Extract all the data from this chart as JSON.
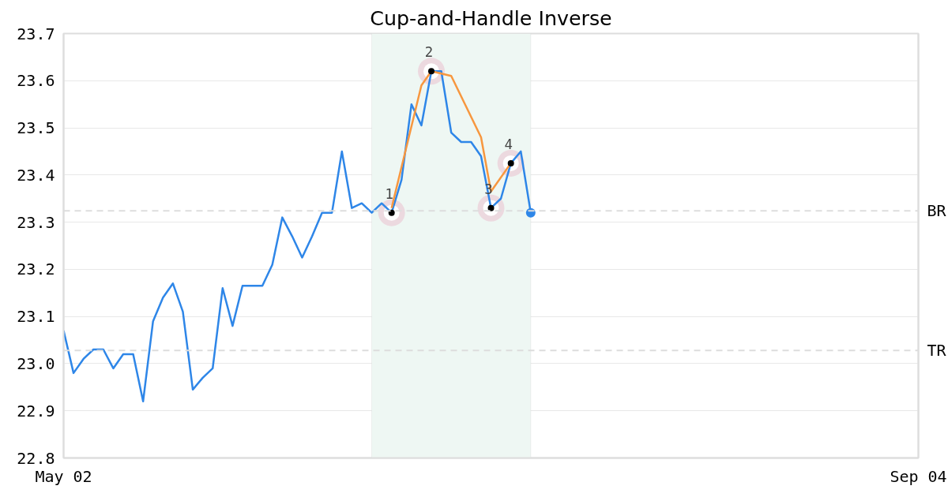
{
  "chart_data": {
    "type": "line",
    "title": "Cup-and-Handle Inverse",
    "categories": [
      "May 02",
      null,
      null,
      null,
      null,
      null,
      null,
      null,
      null,
      null,
      null,
      null,
      null,
      null,
      null,
      null,
      null,
      null,
      null,
      null,
      null,
      null,
      null,
      null,
      null,
      null,
      null,
      null,
      null,
      null,
      null,
      null,
      null,
      null,
      null,
      null,
      null,
      null,
      null,
      null,
      null,
      null,
      null,
      null,
      null,
      null,
      null,
      null,
      null,
      null,
      null,
      null,
      null,
      null,
      null,
      null,
      null,
      null,
      null,
      null,
      null,
      null,
      null,
      null,
      null,
      null,
      null,
      null,
      null,
      null,
      null,
      null,
      null,
      null,
      null,
      null,
      null,
      null,
      null,
      null,
      null,
      null,
      null,
      null,
      null,
      null,
      "Sep 04"
    ],
    "series": [
      {
        "color": "#2e86e8",
        "values": [
          23.07,
          22.98,
          23.01,
          23.03,
          23.03,
          22.99,
          23.02,
          23.02,
          22.92,
          23.09,
          23.14,
          23.17,
          23.11,
          22.945,
          22.97,
          22.99,
          23.16,
          23.08,
          23.165,
          23.165,
          23.165,
          23.21,
          23.31,
          23.27,
          23.225,
          23.27,
          23.32,
          23.32,
          23.45,
          23.33,
          23.34,
          23.32,
          23.34,
          23.32,
          23.39,
          23.55,
          23.505,
          23.62,
          23.62,
          23.49,
          23.47,
          23.47,
          23.44,
          23.33,
          23.35,
          23.425,
          23.45,
          23.32,
          null,
          null,
          null,
          null,
          null,
          null,
          null,
          null,
          null,
          null,
          null,
          null,
          null,
          null,
          null,
          null,
          null,
          null,
          null,
          null,
          null,
          null,
          null,
          null,
          null,
          null,
          null,
          null,
          null,
          null,
          null,
          null,
          null,
          null,
          null,
          null,
          null,
          null,
          null
        ]
      },
      {
        "color": "#f7973f",
        "values": [
          null,
          null,
          null,
          null,
          null,
          null,
          null,
          null,
          null,
          null,
          null,
          null,
          null,
          null,
          null,
          null,
          null,
          null,
          null,
          null,
          null,
          null,
          null,
          null,
          null,
          null,
          null,
          null,
          null,
          null,
          null,
          null,
          null,
          23.33,
          null,
          null,
          23.59,
          23.62,
          null,
          23.61,
          null,
          null,
          23.48,
          23.365,
          null,
          23.425,
          null,
          null,
          null,
          null,
          null,
          null,
          null,
          null,
          null,
          null,
          null,
          null,
          null,
          null,
          null,
          null,
          null,
          null,
          null,
          null,
          null,
          null,
          null,
          null,
          null,
          null,
          null,
          null,
          null,
          null,
          null,
          null,
          null,
          null,
          null,
          null,
          null,
          null,
          null,
          null,
          null
        ]
      },
      {
        "type": "scatter",
        "color": "#000000",
        "marker": "circle",
        "values": [
          null,
          null,
          null,
          null,
          null,
          null,
          null,
          null,
          null,
          null,
          null,
          null,
          null,
          null,
          null,
          null,
          null,
          null,
          null,
          null,
          null,
          null,
          null,
          null,
          null,
          null,
          null,
          null,
          null,
          null,
          null,
          null,
          null,
          23.32,
          null,
          null,
          null,
          23.62,
          null,
          null,
          null,
          null,
          null,
          23.33,
          null,
          23.425,
          null,
          null,
          null,
          null,
          null,
          null,
          null,
          null,
          null,
          null,
          null,
          null,
          null,
          null,
          null,
          null,
          null,
          null,
          null,
          null,
          null,
          null,
          null,
          null,
          null,
          null,
          null,
          null,
          null,
          null,
          null,
          null,
          null,
          null,
          null,
          null,
          null,
          null,
          null,
          null,
          null
        ]
      },
      {
        "type": "scatter",
        "color": "#2e86e8",
        "marker": "circle",
        "values": [
          null,
          null,
          null,
          null,
          null,
          null,
          null,
          null,
          null,
          null,
          null,
          null,
          null,
          null,
          null,
          null,
          null,
          null,
          null,
          null,
          null,
          null,
          null,
          null,
          null,
          null,
          null,
          null,
          null,
          null,
          null,
          null,
          null,
          null,
          null,
          null,
          null,
          null,
          null,
          null,
          null,
          null,
          null,
          null,
          null,
          null,
          null,
          23.32,
          null,
          null,
          null,
          null,
          null,
          null,
          null,
          null,
          null,
          null,
          null,
          null,
          null,
          null,
          null,
          null,
          null,
          null,
          null,
          null,
          null,
          null,
          null,
          null,
          null,
          null,
          null,
          null,
          null,
          null,
          null,
          null,
          null,
          null,
          null,
          null,
          null,
          null,
          null
        ]
      }
    ],
    "annotations": [
      "1",
      "2",
      "3",
      "4"
    ],
    "ref_lines": [
      {
        "axis": "y",
        "value": 23.324,
        "label": "BR",
        "color": "#dddddd",
        "line_style": "dashed"
      },
      {
        "axis": "y",
        "value": 23.028,
        "label": "TR",
        "color": "#dddddd",
        "line_style": "dashed"
      }
    ],
    "ylim": [
      22.8,
      23.7
    ],
    "yticks": [
      22.8,
      22.9,
      {
        "value": 23,
        "label": "23.0"
      },
      23.1,
      23.2,
      23.3,
      23.4,
      23.5,
      23.6,
      23.7
    ],
    "grid": "y"
  }
}
